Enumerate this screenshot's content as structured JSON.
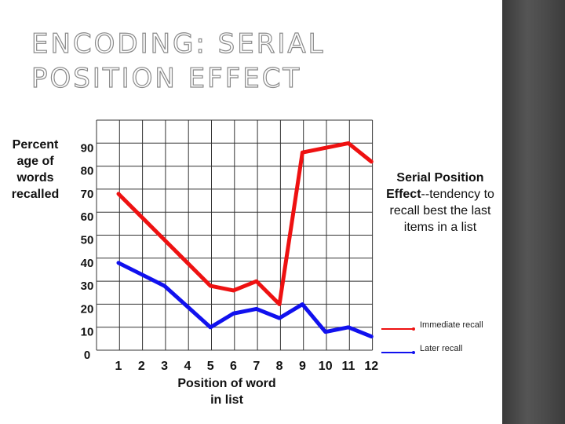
{
  "slide": {
    "title": "ENCODING: SERIAL POSITION EFFECT"
  },
  "annotation": {
    "bold": "Serial Position Effect",
    "rest": "--tendency to recall best the last items in a list"
  },
  "colors": {
    "immediate": "#ee1111",
    "later": "#1111ee",
    "grid": "#333333",
    "title_outline": "#8a8a8a"
  },
  "chart_data": {
    "type": "line",
    "xlabel": "Position of word in list",
    "ylabel": "Percent age of words recalled",
    "x": [
      "1",
      "2",
      "3",
      "4",
      "5",
      "6",
      "7",
      "8",
      "9",
      "10",
      "11",
      "12"
    ],
    "y_ticks": [
      "90",
      "80",
      "70",
      "60",
      "50",
      "40",
      "30",
      "20",
      "10",
      "0"
    ],
    "ylim": [
      0,
      90
    ],
    "grid": true,
    "legend_position": "bottom-right",
    "series": [
      {
        "name": "Immediate recall",
        "color": "#ee1111",
        "values": [
          70,
          60,
          50,
          40,
          30,
          28,
          32,
          22,
          88,
          90,
          92,
          84
        ]
      },
      {
        "name": "Later recall",
        "color": "#1111ee",
        "values": [
          40,
          35,
          30,
          21,
          12,
          18,
          20,
          16,
          22,
          10,
          12,
          8
        ]
      }
    ]
  }
}
